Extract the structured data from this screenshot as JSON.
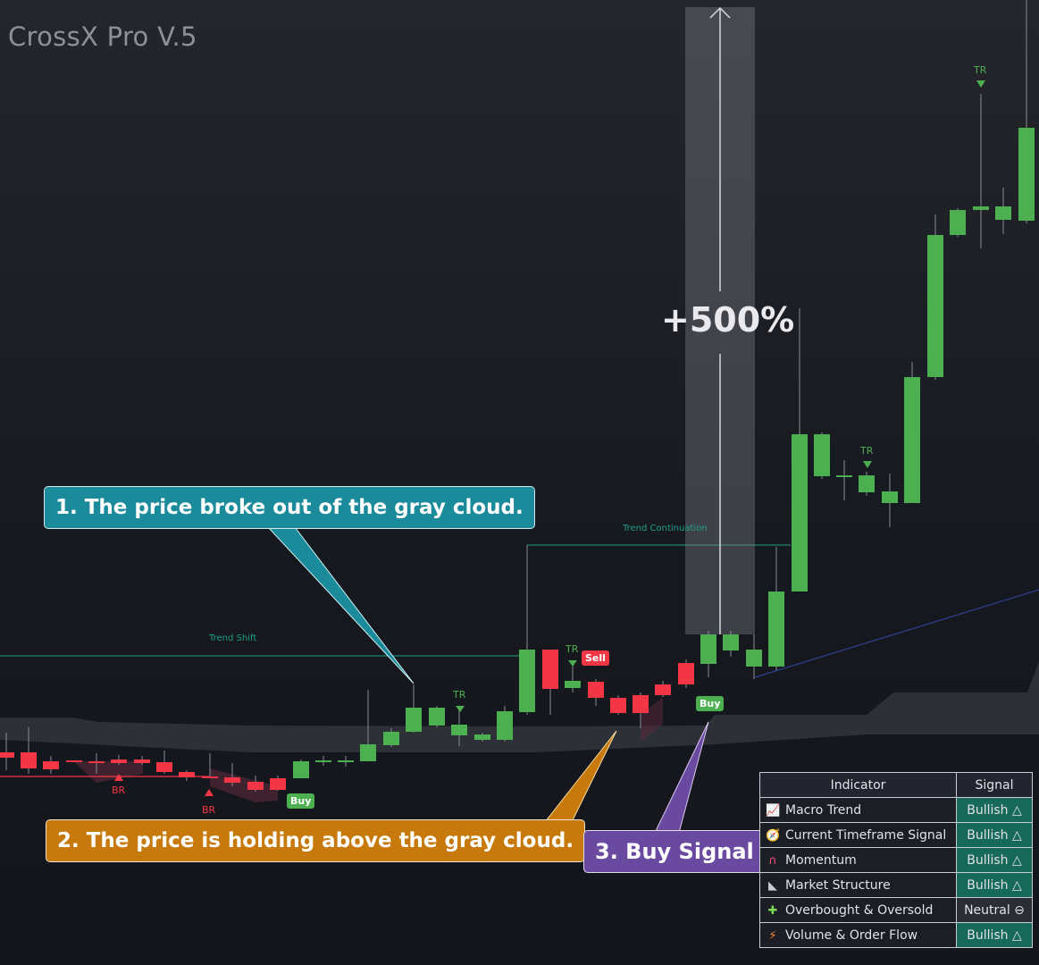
{
  "title": "CrossX Pro V.5",
  "annotations": {
    "callout_1": "1. The price broke out of the gray cloud.",
    "callout_2": "2. The price is holding above the gray cloud.",
    "callout_3": "3. Buy Signal",
    "gain": "+500%"
  },
  "chart_labels": {
    "trend_shift": "Trend Shift",
    "trend_continuation": "Trend Continuation",
    "tr": "TR",
    "br": "BR",
    "buy": "Buy",
    "sell": "Sell"
  },
  "colors": {
    "bull": "#4caf50",
    "bear": "#f23645",
    "cloud": "#2e3038",
    "bullish_cell": "#17695a",
    "neutral_cell": "#2b2d35"
  },
  "table": {
    "headers": [
      "Indicator",
      "Signal"
    ],
    "rows": [
      {
        "icon": "chart-increasing-icon",
        "glyph": "📈",
        "indicator": "Macro Trend",
        "signal": "Bullish △",
        "state": "bull"
      },
      {
        "icon": "compass-icon",
        "glyph": "🧭",
        "indicator": "Current Timeframe Signal",
        "signal": "Bullish △",
        "state": "bull"
      },
      {
        "icon": "magnet-icon",
        "glyph": "∩",
        "indicator": "Momentum",
        "signal": "Bullish △",
        "state": "bull"
      },
      {
        "icon": "triangle-ruler-icon",
        "glyph": "◣",
        "indicator": "Market Structure",
        "signal": "Bullish △",
        "state": "bull"
      },
      {
        "icon": "puzzle-icon",
        "glyph": "✚",
        "indicator": "Overbought & Oversold",
        "signal": "Neutral ⊖",
        "state": "neutral"
      },
      {
        "icon": "lightning-icon",
        "glyph": "⚡",
        "indicator": "Volume & Order Flow",
        "signal": "Bullish △",
        "state": "bull"
      }
    ]
  }
}
